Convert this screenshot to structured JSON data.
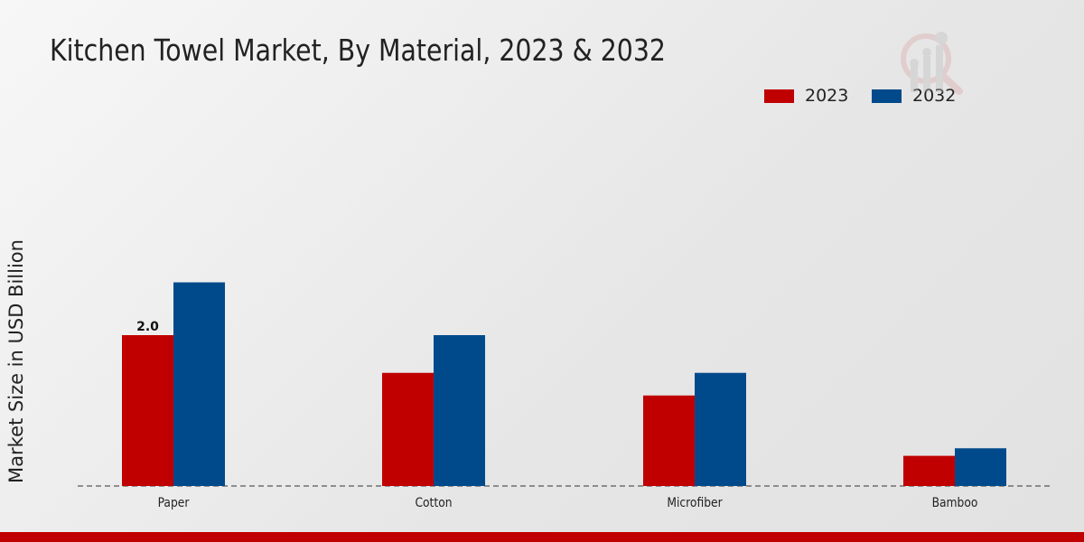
{
  "chart_data": {
    "type": "bar",
    "title": "Kitchen Towel Market, By Material, 2023 & 2032",
    "xlabel": "",
    "ylabel": "Market Size in USD Billion",
    "categories": [
      "Paper",
      "Cotton",
      "Microfiber",
      "Bamboo"
    ],
    "series": [
      {
        "name": "2023",
        "color": "#c00000",
        "values": [
          2.0,
          1.5,
          1.2,
          0.4
        ]
      },
      {
        "name": "2032",
        "color": "#004a8b",
        "values": [
          2.7,
          2.0,
          1.5,
          0.5
        ]
      }
    ],
    "data_labels": [
      {
        "series": "2023",
        "category": "Paper",
        "text": "2.0"
      }
    ],
    "ylim": [
      0,
      5.5
    ],
    "legend_position": "top-right",
    "grid": false
  }
}
